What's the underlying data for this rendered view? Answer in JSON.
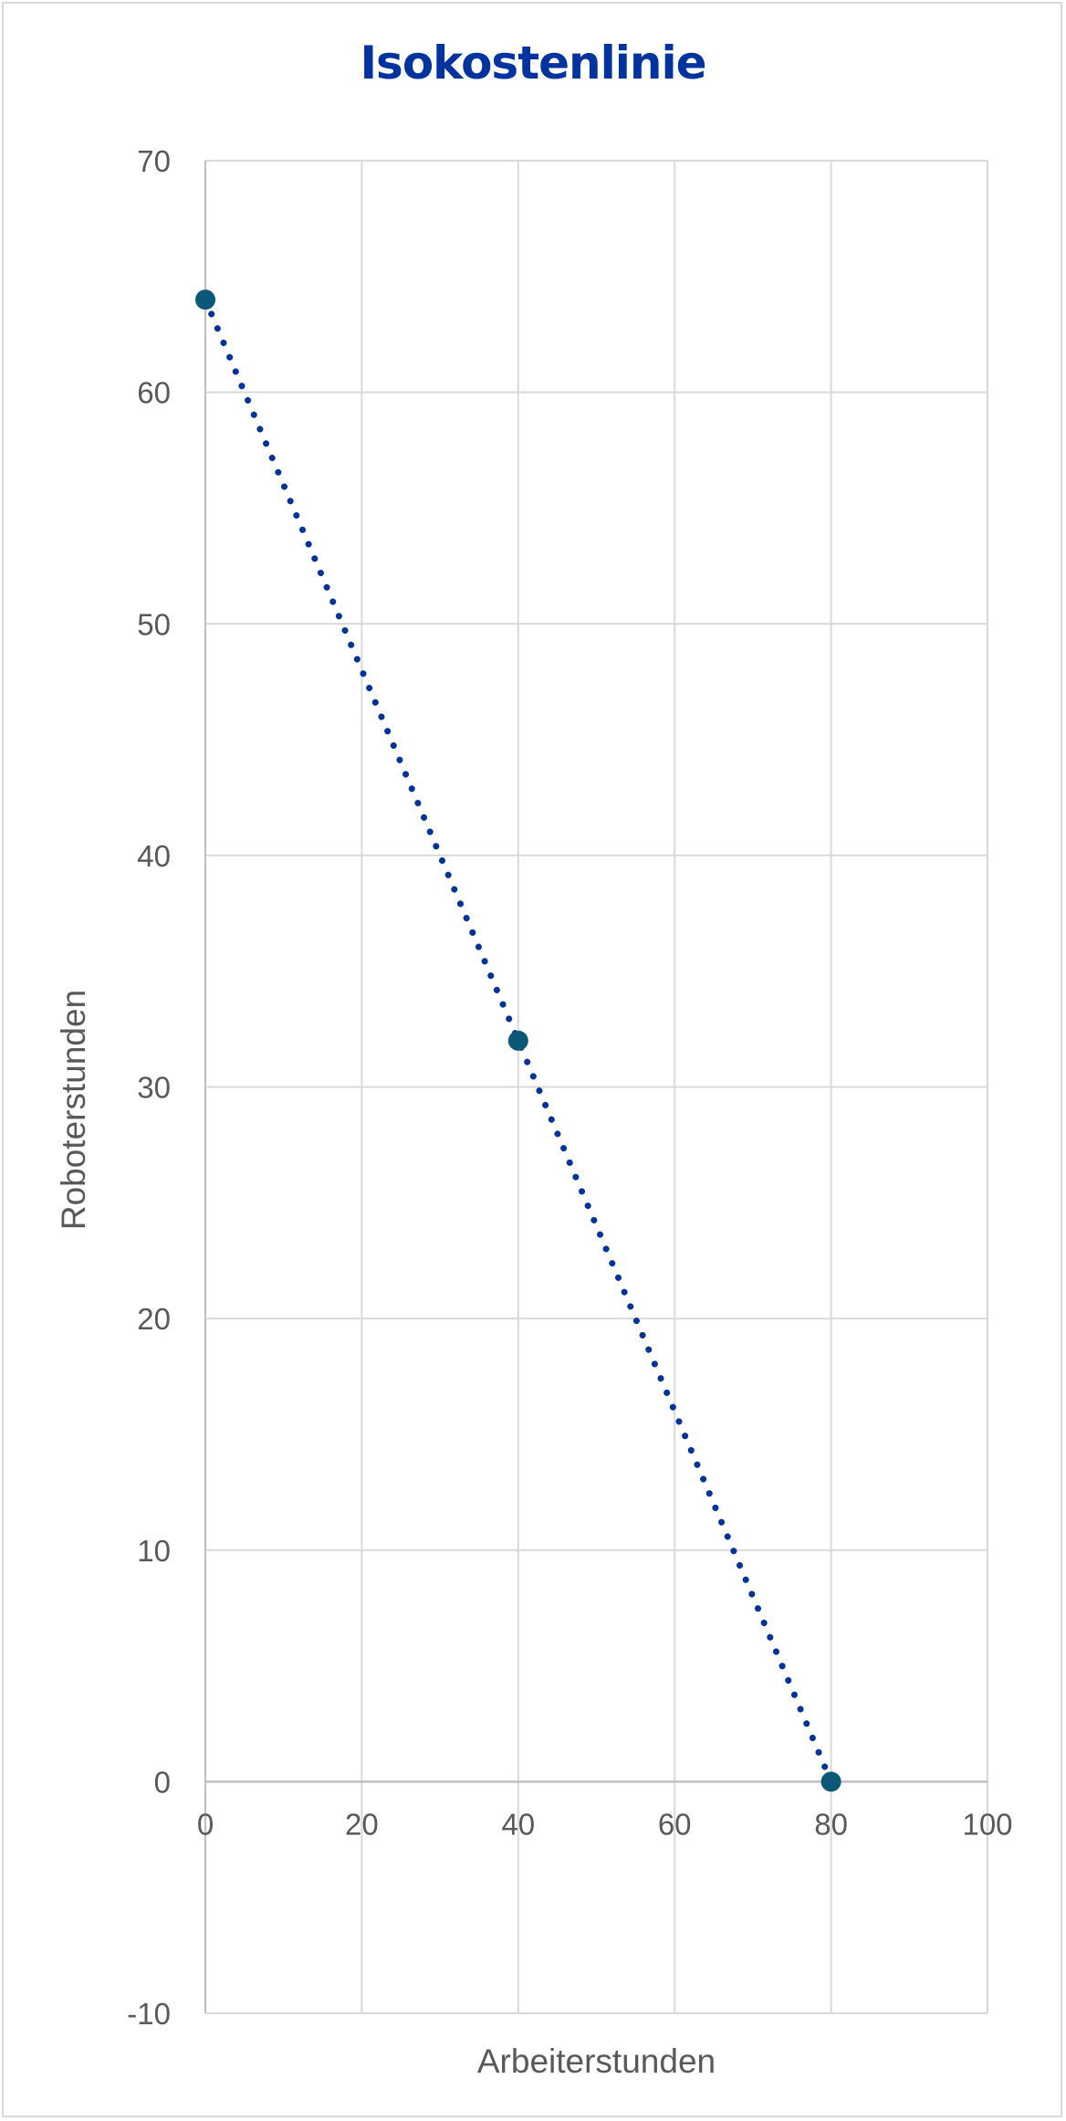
{
  "colors": {
    "title": "#0033a0",
    "line": "#003399",
    "marker": "#0b5877",
    "grid": "#d9d9d9",
    "axis_line": "#bfbfbf",
    "text": "#595959"
  },
  "chart_data": {
    "type": "scatter",
    "title": "Isokostenlinie",
    "xlabel": "Arbeiterstunden",
    "ylabel": "Roboterstunden",
    "xlim": [
      0,
      100
    ],
    "ylim": [
      -10,
      70
    ],
    "xticks": [
      0,
      20,
      40,
      60,
      80,
      100
    ],
    "yticks": [
      -10,
      0,
      10,
      20,
      30,
      40,
      50,
      60,
      70
    ],
    "grid": true,
    "line_style": "dotted",
    "series": [
      {
        "points": [
          {
            "x": 0,
            "y": 64
          },
          {
            "x": 40,
            "y": 32
          },
          {
            "x": 80,
            "y": 0
          }
        ]
      }
    ]
  }
}
